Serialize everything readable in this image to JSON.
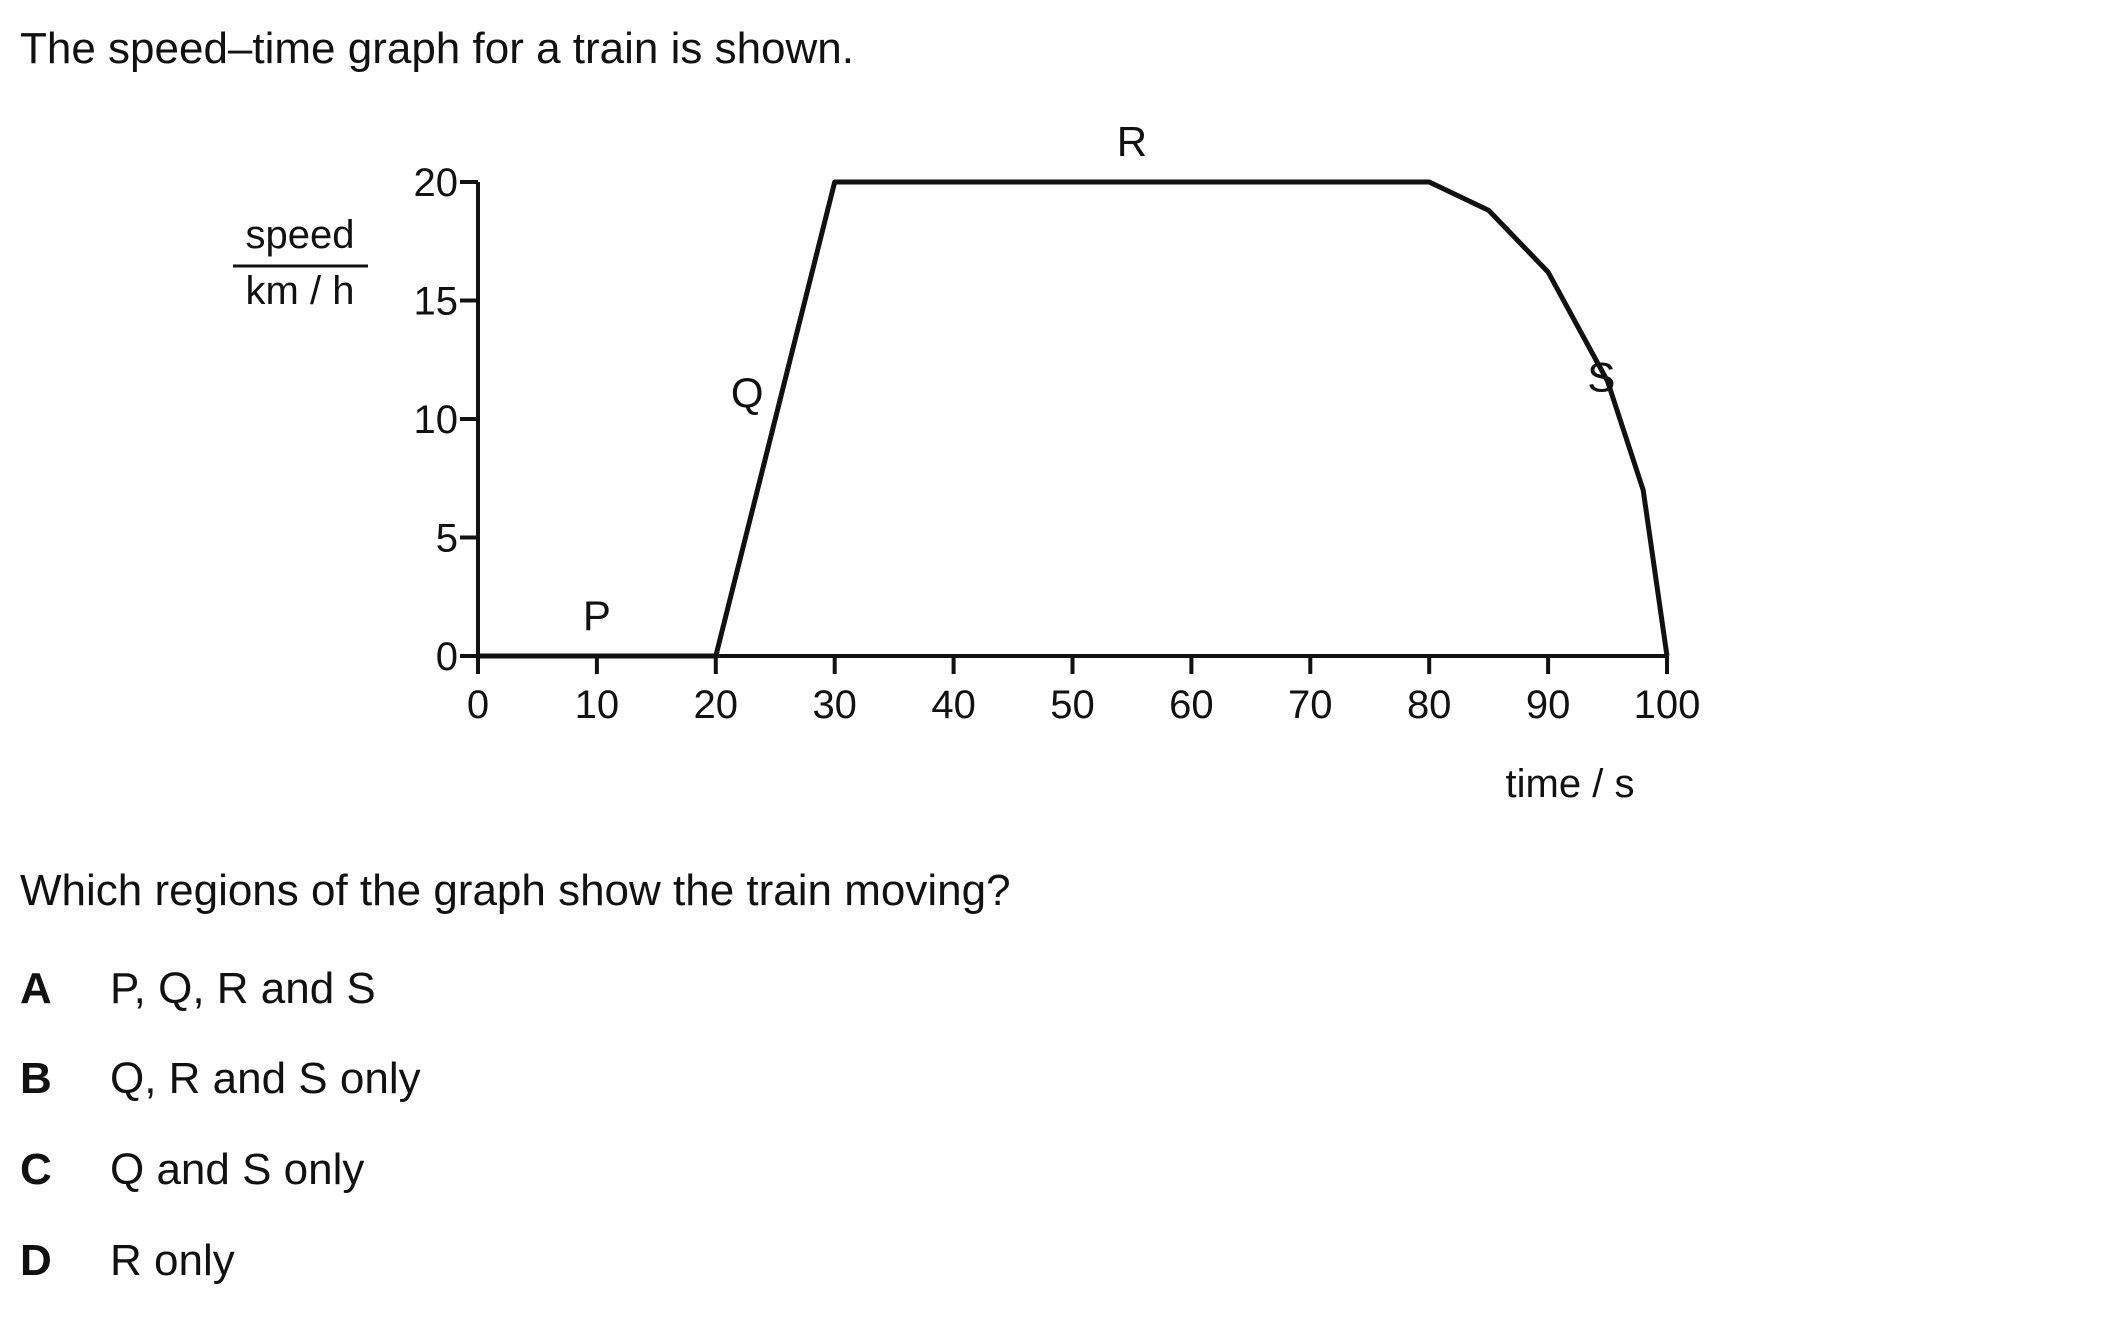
{
  "intro": "The speed–time graph for a train is shown.",
  "question": "Which regions of the graph show the train moving?",
  "options": [
    {
      "letter": "A",
      "text": "P, Q, R and S"
    },
    {
      "letter": "B",
      "text": "Q, R and S only"
    },
    {
      "letter": "C",
      "text": "Q and S only"
    },
    {
      "letter": "D",
      "text": "R only"
    }
  ],
  "chart_data": {
    "type": "line",
    "ylabel_top": "speed",
    "ylabel_bottom": "km / h",
    "xlabel": "time / s",
    "xlim": [
      0,
      100
    ],
    "ylim": [
      0,
      20
    ],
    "x_ticks": [
      0,
      10,
      20,
      30,
      40,
      50,
      60,
      70,
      80,
      90,
      100
    ],
    "y_ticks": [
      0,
      5,
      10,
      15,
      20
    ],
    "grid": false,
    "series": [
      {
        "points": [
          [
            0,
            0
          ],
          [
            20,
            0
          ],
          [
            30,
            20
          ],
          [
            80,
            20
          ],
          [
            85,
            18.8
          ],
          [
            90,
            16.2
          ],
          [
            95,
            11.6
          ],
          [
            98,
            7
          ],
          [
            100,
            0
          ]
        ]
      }
    ],
    "region_labels": [
      {
        "label": "P",
        "x": 10,
        "y": 0
      },
      {
        "label": "Q",
        "x": 25,
        "y": 10
      },
      {
        "label": "R",
        "x": 55,
        "y": 20
      },
      {
        "label": "S",
        "x": 97,
        "y": 11
      }
    ]
  }
}
